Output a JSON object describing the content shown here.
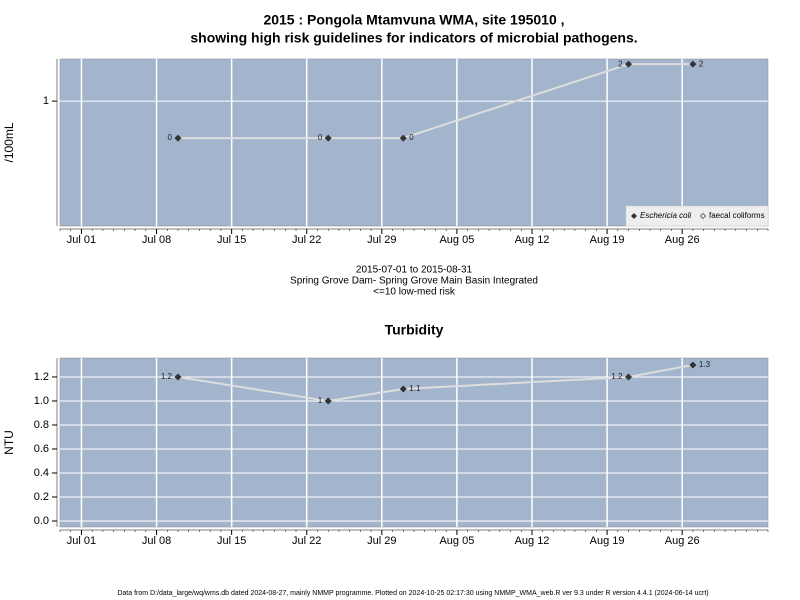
{
  "chart_data": [
    {
      "type": "line",
      "title": "2015 : Pongola Mtamvuna WMA, site 195010 ,",
      "subtitle": "showing high risk guidelines for indicators of microbial pathogens.",
      "y_label": "/100mL",
      "caption": [
        "2015-07-01 to 2015-08-31",
        "Spring Grove Dam- Spring Grove Main Basin Integrated",
        "<=10 low-med risk"
      ],
      "x": [
        "2015-07-10",
        "2015-07-24",
        "2015-07-31",
        "2015-08-21",
        "2015-08-27"
      ],
      "series": [
        {
          "name": "Eschericia coli",
          "color": "#333333",
          "values": [
            0,
            0,
            0,
            2,
            2
          ]
        }
      ],
      "legend": {
        "position": "bottom-right",
        "entries": [
          {
            "name": "Eschericia coli",
            "marker": "filled"
          },
          {
            "name": "faecal coliforms",
            "marker": "open"
          }
        ]
      },
      "xlim": [
        "2015-06-29",
        "2015-09-03"
      ],
      "xticks": [
        {
          "value": "2015-07-01",
          "label": "Jul 01"
        },
        {
          "value": "2015-07-08",
          "label": "Jul 08"
        },
        {
          "value": "2015-07-15",
          "label": "Jul 15"
        },
        {
          "value": "2015-07-22",
          "label": "Jul 22"
        },
        {
          "value": "2015-07-29",
          "label": "Jul 29"
        },
        {
          "value": "2015-08-05",
          "label": "Aug 05"
        },
        {
          "value": "2015-08-12",
          "label": "Aug 12"
        },
        {
          "value": "2015-08-19",
          "label": "Aug 19"
        },
        {
          "value": "2015-08-26",
          "label": "Aug 26"
        }
      ],
      "ylim": [
        -2.38,
        2.14
      ],
      "yticks": [
        1
      ],
      "grid": true,
      "background": "#a3b5cd",
      "line_color": "#dddddd"
    },
    {
      "type": "line",
      "title": "Turbidity",
      "y_label": "NTU",
      "x": [
        "2015-07-10",
        "2015-07-24",
        "2015-07-31",
        "2015-08-21",
        "2015-08-27"
      ],
      "series": [
        {
          "name": "Turbidity",
          "color": "#333333",
          "values": [
            1.2,
            1,
            1.1,
            1.2,
            1.3
          ]
        }
      ],
      "xlim": [
        "2015-06-29",
        "2015-09-03"
      ],
      "xticks": [
        {
          "value": "2015-07-01",
          "label": "Jul 01"
        },
        {
          "value": "2015-07-08",
          "label": "Jul 08"
        },
        {
          "value": "2015-07-15",
          "label": "Jul 15"
        },
        {
          "value": "2015-07-22",
          "label": "Jul 22"
        },
        {
          "value": "2015-07-29",
          "label": "Jul 29"
        },
        {
          "value": "2015-08-05",
          "label": "Aug 05"
        },
        {
          "value": "2015-08-12",
          "label": "Aug 12"
        },
        {
          "value": "2015-08-19",
          "label": "Aug 19"
        },
        {
          "value": "2015-08-26",
          "label": "Aug 26"
        }
      ],
      "ylim": [
        -0.05,
        1.358
      ],
      "yticks": [
        {
          "value": 0,
          "label": "0.0"
        },
        {
          "value": 0.2,
          "label": "0.2"
        },
        {
          "value": 0.4,
          "label": "0.4"
        },
        {
          "value": 0.6,
          "label": "0.6"
        },
        {
          "value": 0.8,
          "label": "0.8"
        },
        {
          "value": 1,
          "label": "1.0"
        },
        {
          "value": 1.2,
          "label": "1.2"
        }
      ],
      "grid": true,
      "background": "#a3b5cd",
      "line_color": "#dddddd"
    }
  ],
  "footer": "Data from D:/data_large/wq/wms.db dated 2024-08-27, mainly NMMP programme. Plotted on 2024-10-25 02:17:30 using NMMP_WMA_web.R ver 9.3 under R version 4.4.1 (2024-06-14 ucrt)"
}
